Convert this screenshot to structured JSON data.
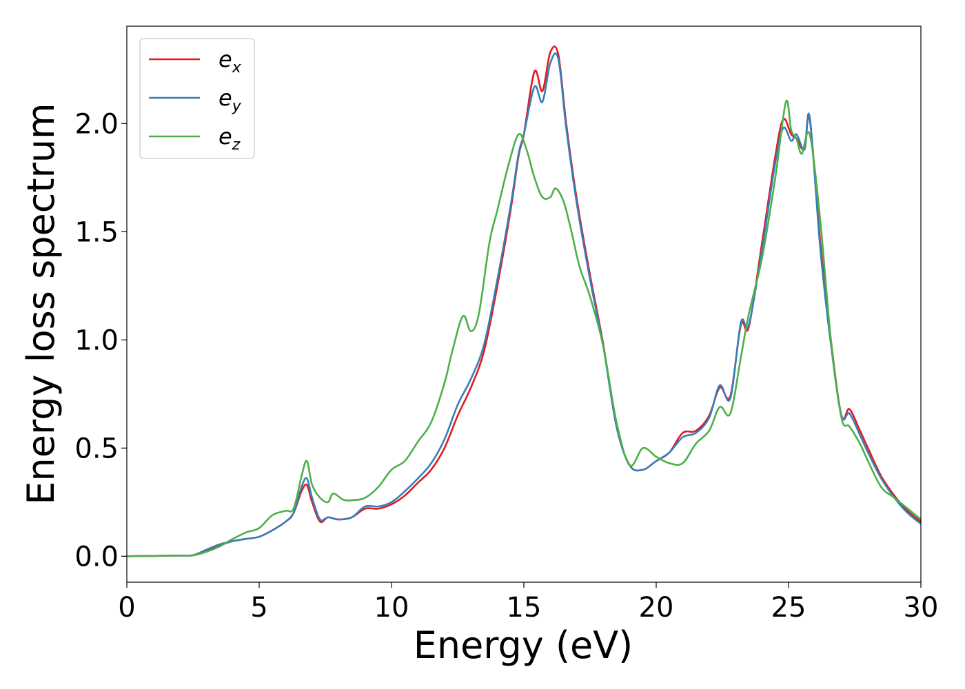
{
  "chart_data": {
    "type": "line",
    "title": "",
    "xlabel": "Energy (eV)",
    "ylabel": "Energy loss spectrum",
    "xlim": [
      0,
      30
    ],
    "ylim": [
      -0.12,
      2.45
    ],
    "xticks": [
      0,
      5,
      10,
      15,
      20,
      25,
      30
    ],
    "xtick_labels": [
      "0",
      "5",
      "10",
      "15",
      "20",
      "25",
      "30"
    ],
    "yticks": [
      0.0,
      0.5,
      1.0,
      1.5,
      2.0
    ],
    "ytick_labels": [
      "0.0",
      "0.5",
      "1.0",
      "1.5",
      "2.0"
    ],
    "grid": false,
    "legend_position": "top-left",
    "series": [
      {
        "name": "e",
        "subscript": "x",
        "color": "#e41a1c",
        "x": [
          0,
          2,
          2.5,
          3,
          3.5,
          4,
          4.5,
          5,
          5.5,
          6,
          6.3,
          6.6,
          6.8,
          7.0,
          7.3,
          7.6,
          8,
          8.5,
          9,
          9.5,
          10,
          10.5,
          11,
          11.5,
          12,
          12.5,
          13,
          13.5,
          14,
          14.5,
          14.8,
          15,
          15.4,
          15.7,
          16,
          16.3,
          16.6,
          17,
          17.5,
          18,
          18.5,
          19,
          19.5,
          20,
          20.5,
          21,
          21.5,
          22,
          22.4,
          22.8,
          23.2,
          23.5,
          24,
          24.5,
          24.8,
          25.1,
          25.3,
          25.6,
          25.8,
          26.2,
          26.6,
          27,
          27.3,
          27.7,
          28,
          28.5,
          29,
          29.5,
          30
        ],
        "y": [
          0.0,
          0.003,
          0.005,
          0.025,
          0.05,
          0.07,
          0.08,
          0.09,
          0.12,
          0.16,
          0.2,
          0.3,
          0.33,
          0.25,
          0.16,
          0.18,
          0.17,
          0.18,
          0.22,
          0.22,
          0.24,
          0.28,
          0.34,
          0.4,
          0.5,
          0.65,
          0.78,
          0.95,
          1.25,
          1.6,
          1.85,
          1.95,
          2.24,
          2.15,
          2.33,
          2.32,
          2.0,
          1.65,
          1.3,
          0.98,
          0.6,
          0.42,
          0.4,
          0.44,
          0.48,
          0.57,
          0.58,
          0.65,
          0.78,
          0.74,
          1.07,
          1.06,
          1.45,
          1.85,
          2.02,
          1.95,
          1.93,
          1.88,
          2.02,
          1.45,
          1.0,
          0.65,
          0.68,
          0.58,
          0.5,
          0.37,
          0.28,
          0.21,
          0.16
        ]
      },
      {
        "name": "e",
        "subscript": "y",
        "color": "#377eb8",
        "x": [
          0,
          2,
          2.5,
          3,
          3.5,
          4,
          4.5,
          5,
          5.5,
          6,
          6.3,
          6.6,
          6.8,
          7.0,
          7.3,
          7.6,
          8,
          8.5,
          9,
          9.5,
          10,
          10.5,
          11,
          11.5,
          12,
          12.5,
          13,
          13.5,
          14,
          14.5,
          14.8,
          15,
          15.4,
          15.7,
          16,
          16.3,
          16.6,
          17,
          17.5,
          18,
          18.5,
          19,
          19.5,
          20,
          20.5,
          21,
          21.5,
          22,
          22.4,
          22.8,
          23.2,
          23.5,
          24,
          24.5,
          24.8,
          25.1,
          25.3,
          25.6,
          25.8,
          26.2,
          26.6,
          27,
          27.3,
          27.7,
          28,
          28.5,
          29,
          29.5,
          30
        ],
        "y": [
          0.0,
          0.003,
          0.005,
          0.03,
          0.055,
          0.07,
          0.08,
          0.09,
          0.12,
          0.16,
          0.2,
          0.32,
          0.36,
          0.27,
          0.17,
          0.18,
          0.17,
          0.18,
          0.23,
          0.23,
          0.25,
          0.3,
          0.36,
          0.43,
          0.54,
          0.7,
          0.82,
          0.98,
          1.28,
          1.62,
          1.86,
          1.95,
          2.17,
          2.1,
          2.28,
          2.3,
          1.98,
          1.63,
          1.28,
          0.97,
          0.6,
          0.42,
          0.4,
          0.44,
          0.48,
          0.55,
          0.57,
          0.64,
          0.79,
          0.73,
          1.08,
          1.07,
          1.42,
          1.82,
          1.98,
          1.92,
          1.95,
          1.88,
          2.03,
          1.42,
          0.98,
          0.65,
          0.66,
          0.56,
          0.48,
          0.36,
          0.27,
          0.2,
          0.15
        ]
      },
      {
        "name": "e",
        "subscript": "z",
        "color": "#4daf4a",
        "x": [
          0,
          2,
          2.5,
          3,
          3.5,
          4,
          4.5,
          5,
          5.5,
          6,
          6.3,
          6.6,
          6.8,
          7.0,
          7.3,
          7.6,
          7.8,
          8.2,
          8.6,
          9,
          9.5,
          10,
          10.5,
          11,
          11.5,
          12,
          12.3,
          12.7,
          13,
          13.3,
          13.7,
          14,
          14.4,
          14.8,
          15.1,
          15.4,
          15.7,
          16,
          16.2,
          16.5,
          16.8,
          17.1,
          17.5,
          18,
          18.5,
          19,
          19.5,
          20,
          20.5,
          21,
          21.5,
          22,
          22.4,
          22.8,
          23.2,
          23.5,
          24,
          24.5,
          24.9,
          25.1,
          25.3,
          25.5,
          25.8,
          26.2,
          26.6,
          27,
          27.3,
          27.7,
          28,
          28.5,
          29,
          29.5,
          30
        ],
        "y": [
          0.0,
          0.003,
          0.004,
          0.02,
          0.045,
          0.08,
          0.11,
          0.13,
          0.19,
          0.21,
          0.22,
          0.37,
          0.44,
          0.33,
          0.27,
          0.25,
          0.29,
          0.26,
          0.26,
          0.27,
          0.32,
          0.4,
          0.44,
          0.53,
          0.62,
          0.8,
          0.95,
          1.11,
          1.04,
          1.12,
          1.45,
          1.6,
          1.8,
          1.95,
          1.88,
          1.75,
          1.66,
          1.66,
          1.7,
          1.64,
          1.5,
          1.34,
          1.2,
          0.97,
          0.62,
          0.42,
          0.5,
          0.46,
          0.43,
          0.43,
          0.52,
          0.58,
          0.69,
          0.66,
          0.92,
          1.12,
          1.38,
          1.75,
          2.1,
          1.97,
          1.93,
          1.86,
          1.95,
          1.55,
          1.0,
          0.64,
          0.6,
          0.52,
          0.44,
          0.32,
          0.27,
          0.22,
          0.17
        ]
      }
    ]
  }
}
